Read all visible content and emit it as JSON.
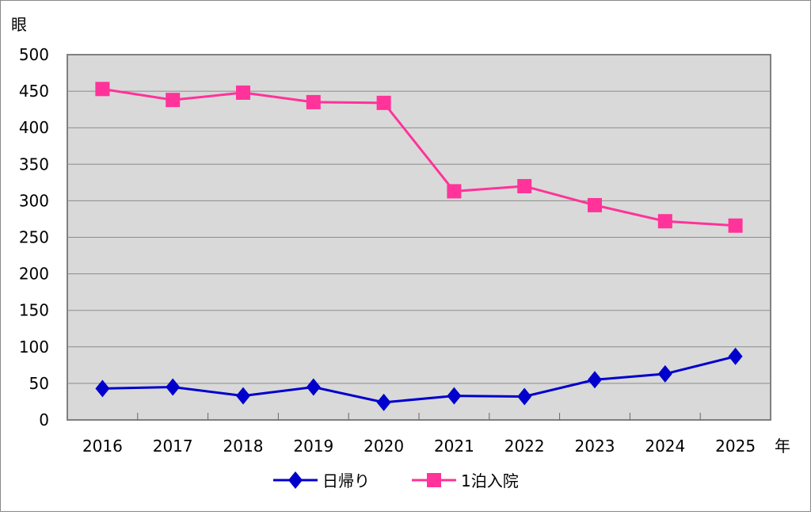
{
  "chart_data": {
    "type": "line",
    "title": "",
    "xlabel": "年",
    "ylabel": "眼",
    "categories": [
      "2016",
      "2017",
      "2018",
      "2019",
      "2020",
      "2021",
      "2022",
      "2023",
      "2024",
      "2025"
    ],
    "ylim": [
      0,
      500
    ],
    "yticks": [
      "0",
      "50",
      "100",
      "150",
      "200",
      "250",
      "300",
      "350",
      "400",
      "450",
      "500"
    ],
    "grid": true,
    "legend_position": "bottom",
    "series": [
      {
        "name": "日帰り",
        "color": "#0000CC",
        "marker": "diamond",
        "values": [
          43,
          45,
          33,
          45,
          24,
          33,
          32,
          55,
          63,
          87
        ]
      },
      {
        "name": "1泊入院",
        "color": "#FF3399",
        "marker": "square",
        "values": [
          453,
          438,
          448,
          435,
          434,
          313,
          320,
          294,
          272,
          266
        ]
      }
    ]
  }
}
